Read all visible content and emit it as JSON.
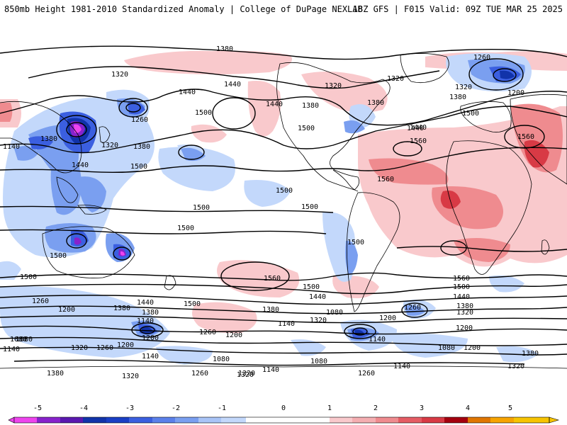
{
  "header": {
    "title": "850mb Height 1981-2010 Standardized Anomaly | College of DuPage NEXLAB",
    "valid": "18Z GFS | F015 Valid: 09Z TUE MAR 25 2025"
  },
  "map": {
    "contour_labels": [
      {
        "id": "c1",
        "text": "1380"
      },
      {
        "id": "c2",
        "text": "1320"
      },
      {
        "id": "c3",
        "text": "1440"
      },
      {
        "id": "c4",
        "text": "1500"
      },
      {
        "id": "c5",
        "text": "1260"
      },
      {
        "id": "c6",
        "text": "1380"
      },
      {
        "id": "c7",
        "text": "1440"
      },
      {
        "id": "c8",
        "text": "1500"
      },
      {
        "id": "c9",
        "text": "1320"
      },
      {
        "id": "c10",
        "text": "1440"
      },
      {
        "id": "c11",
        "text": "1320"
      },
      {
        "id": "c12",
        "text": "1440"
      },
      {
        "id": "c13",
        "text": "1380"
      },
      {
        "id": "c14",
        "text": "1500"
      },
      {
        "id": "c15",
        "text": "1500"
      },
      {
        "id": "c16",
        "text": "1500"
      },
      {
        "id": "c17",
        "text": "1500"
      },
      {
        "id": "c18",
        "text": "1500"
      },
      {
        "id": "c19",
        "text": "1500"
      },
      {
        "id": "c20",
        "text": "1440"
      },
      {
        "id": "c21",
        "text": "1500"
      },
      {
        "id": "c22",
        "text": "1560"
      },
      {
        "id": "c23",
        "text": "1560"
      },
      {
        "id": "c24",
        "text": "1560"
      },
      {
        "id": "c25",
        "text": "1260"
      },
      {
        "id": "c26",
        "text": "1200"
      },
      {
        "id": "c27",
        "text": "1320"
      },
      {
        "id": "c28",
        "text": "1380"
      },
      {
        "id": "c29",
        "text": "1500"
      },
      {
        "id": "c30",
        "text": "1560"
      },
      {
        "id": "c31",
        "text": "1500"
      },
      {
        "id": "c32",
        "text": "1440"
      },
      {
        "id": "c33",
        "text": "1380"
      },
      {
        "id": "c34",
        "text": "1320"
      },
      {
        "id": "c35",
        "text": "1200"
      },
      {
        "id": "c36",
        "text": "1140"
      },
      {
        "id": "c37",
        "text": "1080"
      },
      {
        "id": "c38",
        "text": "1200"
      },
      {
        "id": "c39",
        "text": "1380"
      },
      {
        "id": "c40",
        "text": "1500"
      },
      {
        "id": "c41",
        "text": "1260"
      },
      {
        "id": "c42",
        "text": "1200"
      },
      {
        "id": "c43",
        "text": "1440"
      },
      {
        "id": "c44",
        "text": "1380"
      },
      {
        "id": "c45",
        "text": "1320"
      },
      {
        "id": "c46",
        "text": "1140"
      },
      {
        "id": "c47",
        "text": "1080"
      },
      {
        "id": "c48",
        "text": "1140"
      },
      {
        "id": "c49",
        "text": "1080"
      },
      {
        "id": "c50",
        "text": "1320"
      },
      {
        "id": "c51",
        "text": "1260"
      },
      {
        "id": "c52",
        "text": "1200"
      },
      {
        "id": "c53",
        "text": "1140"
      },
      {
        "id": "c54",
        "text": "1260"
      },
      {
        "id": "c55",
        "text": "1200"
      },
      {
        "id": "c56",
        "text": "1560"
      },
      {
        "id": "c57",
        "text": "1500"
      },
      {
        "id": "c58",
        "text": "1440"
      },
      {
        "id": "c59",
        "text": "1380"
      },
      {
        "id": "c60",
        "text": "1320"
      },
      {
        "id": "c61",
        "text": "1260"
      },
      {
        "id": "c62",
        "text": "1200"
      },
      {
        "id": "c63",
        "text": "1140"
      },
      {
        "id": "c64",
        "text": "1080"
      },
      {
        "id": "c65",
        "text": "1200"
      },
      {
        "id": "c66",
        "text": "1320"
      },
      {
        "id": "c67",
        "text": "1260"
      },
      {
        "id": "c68",
        "text": "1140"
      },
      {
        "id": "c69",
        "text": "1080"
      },
      {
        "id": "c70",
        "text": "1140"
      },
      {
        "id": "c71",
        "text": "1380"
      },
      {
        "id": "c72",
        "text": "1320"
      },
      {
        "id": "c73",
        "text": "1260"
      },
      {
        "id": "c74",
        "text": "1320"
      },
      {
        "id": "c75",
        "text": "1380"
      },
      {
        "id": "c76",
        "text": "1140"
      },
      {
        "id": "c77",
        "text": "1380"
      },
      {
        "id": "c78",
        "text": "1320"
      },
      {
        "id": "c79",
        "text": "1440"
      },
      {
        "id": "c80",
        "text": "1380"
      },
      {
        "id": "c81",
        "text": "1500"
      },
      {
        "id": "c82",
        "text": "1080"
      }
    ]
  },
  "colorbar": {
    "ticks": [
      "-5",
      "-4",
      "-3",
      "-2",
      "-1",
      "0",
      "1",
      "2",
      "3",
      "4",
      "5"
    ],
    "colors": [
      "#ee44ee",
      "#8822cc",
      "#1133aa",
      "#3b5fe0",
      "#7a9ff0",
      "#c3d8fb",
      "#ffffff",
      "#ffffff",
      "#f6c1c4",
      "#ee8a8e",
      "#d63c48",
      "#a4000f",
      "#f7a400"
    ]
  },
  "colors": {
    "neg1": "#c3d8fb",
    "neg2": "#7a9ff0",
    "neg3": "#3b5fe0",
    "neg4": "#1133aa",
    "neg5": "#8822cc",
    "neg6": "#ee44ee",
    "pos1": "#f9c9cc",
    "pos2": "#ef8b8f",
    "pos3": "#d83a45",
    "pos4": "#a4000f"
  }
}
